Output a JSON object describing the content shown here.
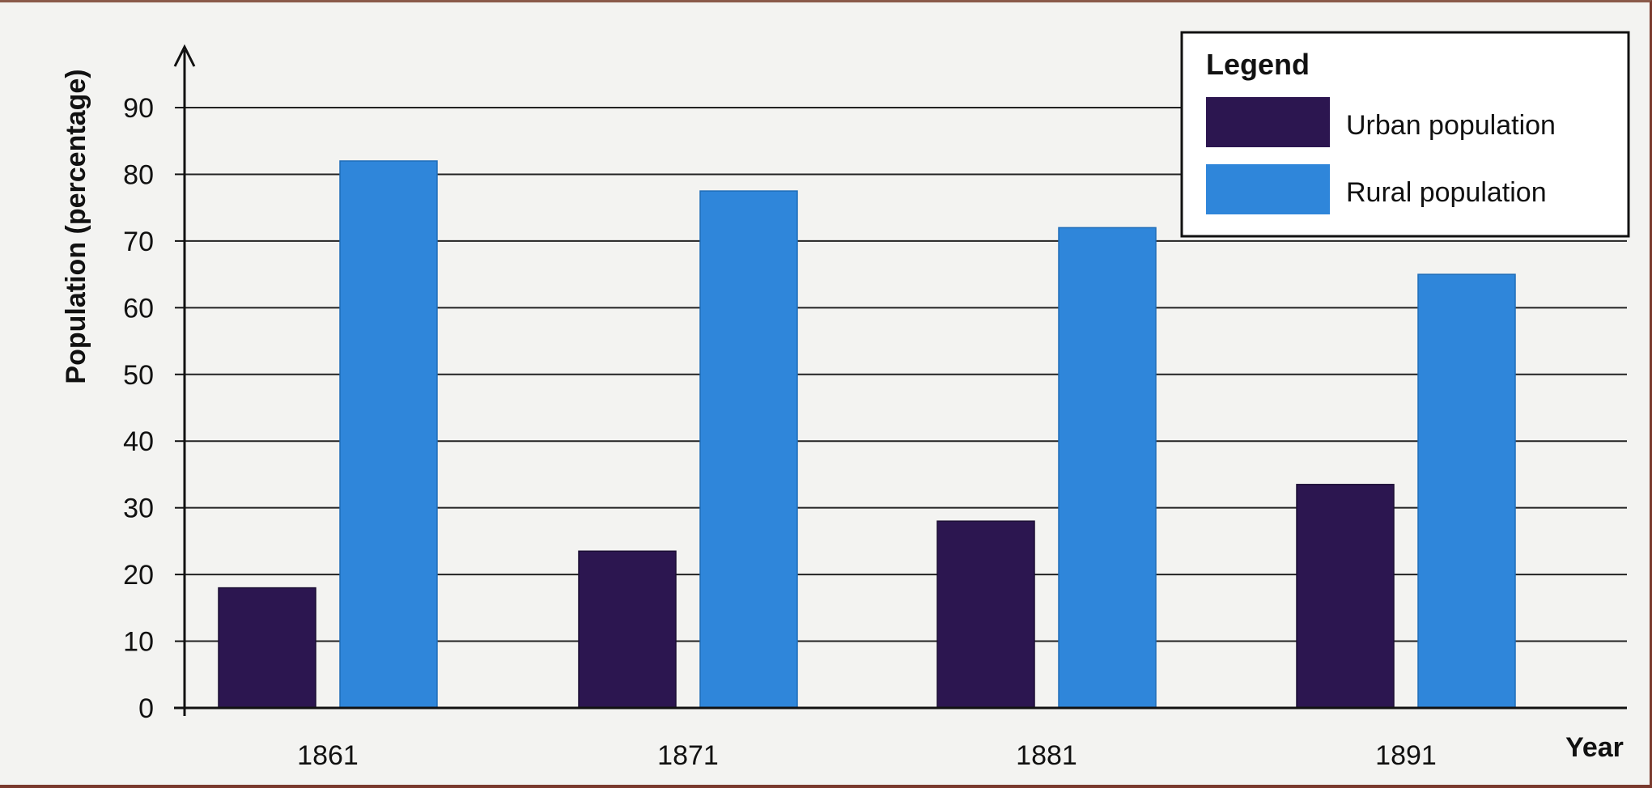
{
  "chart_data": {
    "type": "bar",
    "categories": [
      "1861",
      "1871",
      "1881",
      "1891"
    ],
    "series": [
      {
        "name": "Urban population",
        "values": [
          18,
          23.5,
          28,
          33.5
        ],
        "color": "#2c1650"
      },
      {
        "name": "Rural population",
        "values": [
          82,
          77.5,
          72,
          65
        ],
        "color": "#2f86da"
      }
    ],
    "title": "",
    "xlabel": "Year",
    "ylabel": "Population (percentage)",
    "ylim": [
      0,
      90
    ],
    "yticks": [
      "0",
      "10",
      "20",
      "30",
      "40",
      "50",
      "60",
      "70",
      "80",
      "90"
    ],
    "grid": true,
    "legend": {
      "title": "Legend",
      "placement": "top-right"
    }
  }
}
